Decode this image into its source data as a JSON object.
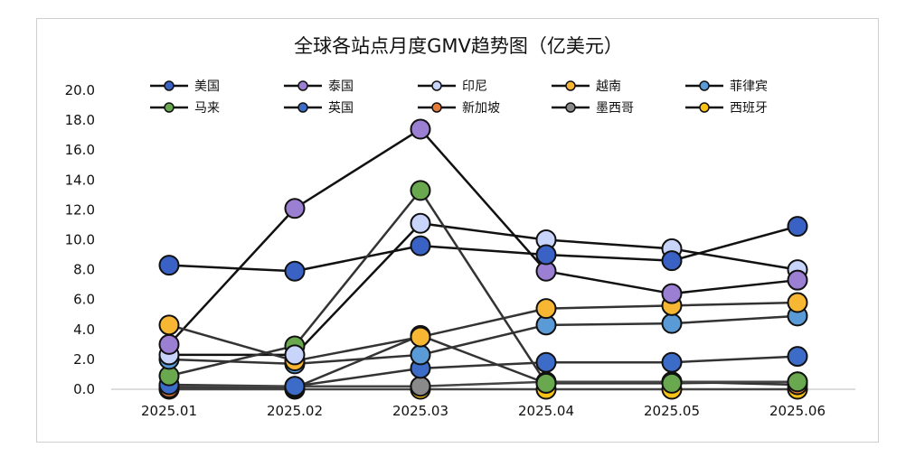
{
  "chart_data": {
    "type": "line",
    "title": "全球各站点月度GMV趋势图（亿美元）",
    "xlabel": "",
    "ylabel": "",
    "categories": [
      "2025.01",
      "2025.02",
      "2025.03",
      "2025.04",
      "2025.05",
      "2025.06"
    ],
    "ylim": [
      0,
      20
    ],
    "yticks": [
      "0.0",
      "2.0",
      "4.0",
      "6.0",
      "8.0",
      "10.0",
      "12.0",
      "14.0",
      "16.0",
      "18.0",
      "20.0"
    ],
    "grid": false,
    "legend": "top",
    "series": [
      {
        "name": "美国",
        "color": "#3a62c4",
        "line": "#111111",
        "values": [
          8.3,
          7.9,
          9.6,
          9.0,
          8.6,
          10.9
        ]
      },
      {
        "name": "泰国",
        "color": "#9b7fd3",
        "line": "#111111",
        "values": [
          3.0,
          12.1,
          17.4,
          7.9,
          6.4,
          7.3
        ]
      },
      {
        "name": "印尼",
        "color": "#c9d4fb",
        "line": "#111111",
        "values": [
          2.3,
          2.3,
          11.1,
          10.0,
          9.4,
          8.0
        ]
      },
      {
        "name": "越南",
        "color": "#f7b733",
        "line": "#333333",
        "values": [
          4.3,
          1.9,
          3.5,
          5.4,
          5.6,
          5.8
        ]
      },
      {
        "name": "菲律宾",
        "color": "#5a9ad6",
        "line": "#333333",
        "values": [
          2.0,
          1.7,
          2.3,
          4.3,
          4.4,
          4.9
        ]
      },
      {
        "name": "马来",
        "color": "#6aa84f",
        "line": "#333333",
        "values": [
          0.9,
          2.9,
          13.3,
          0.4,
          0.4,
          0.5
        ]
      },
      {
        "name": "英国",
        "color": "#3c6cc8",
        "line": "#333333",
        "values": [
          0.3,
          0.2,
          1.4,
          1.8,
          1.8,
          2.2
        ]
      },
      {
        "name": "新加坡",
        "color": "#e67c3b",
        "line": "#333333",
        "values": [
          0.1,
          0.1,
          3.6,
          0.4,
          0.5,
          0.3
        ]
      },
      {
        "name": "墨西哥",
        "color": "#8a8a8a",
        "line": "#444444",
        "values": [
          0.2,
          0.2,
          0.2,
          0.5,
          0.5,
          0.5
        ]
      },
      {
        "name": "西班牙",
        "color": "#f9c217",
        "line": "#444444",
        "values": [
          0.0,
          0.0,
          0.0,
          0.0,
          0.0,
          0.0
        ]
      }
    ]
  }
}
